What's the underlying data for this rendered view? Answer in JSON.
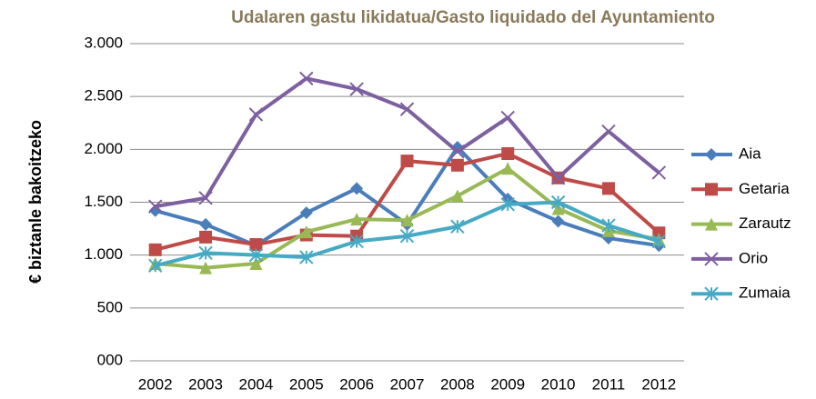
{
  "chart_data": {
    "type": "line",
    "title": "Udalaren gastu likidatua/Gasto liquidado del Ayuntamiento",
    "y_label": "€ biztanle bakoitzeko",
    "categories": [
      "2002",
      "2003",
      "2004",
      "2005",
      "2006",
      "2007",
      "2008",
      "2009",
      "2010",
      "2011",
      "2012"
    ],
    "ylim": [
      0,
      3000
    ],
    "yticks": [
      {
        "value": 0,
        "label": "000"
      },
      500,
      {
        "value": 1000,
        "label": "1.000"
      },
      {
        "value": 1500,
        "label": "1.500"
      },
      {
        "value": 2000,
        "label": "2.000"
      },
      {
        "value": 2500,
        "label": "2.500"
      },
      {
        "value": 3000,
        "label": "3.000"
      }
    ],
    "grid": true,
    "legend": "right",
    "series": [
      {
        "name": "Aia",
        "color": "#4a7ebb",
        "marker": "diamond",
        "values": [
          1420,
          1290,
          1090,
          1400,
          1630,
          1290,
          2020,
          1530,
          1320,
          1160,
          1090
        ]
      },
      {
        "name": "Getaria",
        "color": "#be4b48",
        "marker": "square",
        "values": [
          1050,
          1170,
          1100,
          1190,
          1180,
          1890,
          1850,
          1960,
          1730,
          1630,
          1210
        ]
      },
      {
        "name": "Zarautz",
        "color": "#98b954",
        "marker": "triangle",
        "values": [
          920,
          880,
          920,
          1220,
          1340,
          1330,
          1560,
          1820,
          1440,
          1230,
          1150
        ]
      },
      {
        "name": "Orio",
        "color": "#7d60a0",
        "marker": "x",
        "values": [
          1460,
          1540,
          2330,
          2670,
          2570,
          2380,
          1980,
          2300,
          1730,
          2170,
          1780
        ]
      },
      {
        "name": "Zumaia",
        "color": "#46aac5",
        "marker": "star",
        "values": [
          900,
          1020,
          1000,
          980,
          1130,
          1180,
          1270,
          1480,
          1500,
          1280,
          1130
        ]
      }
    ]
  }
}
